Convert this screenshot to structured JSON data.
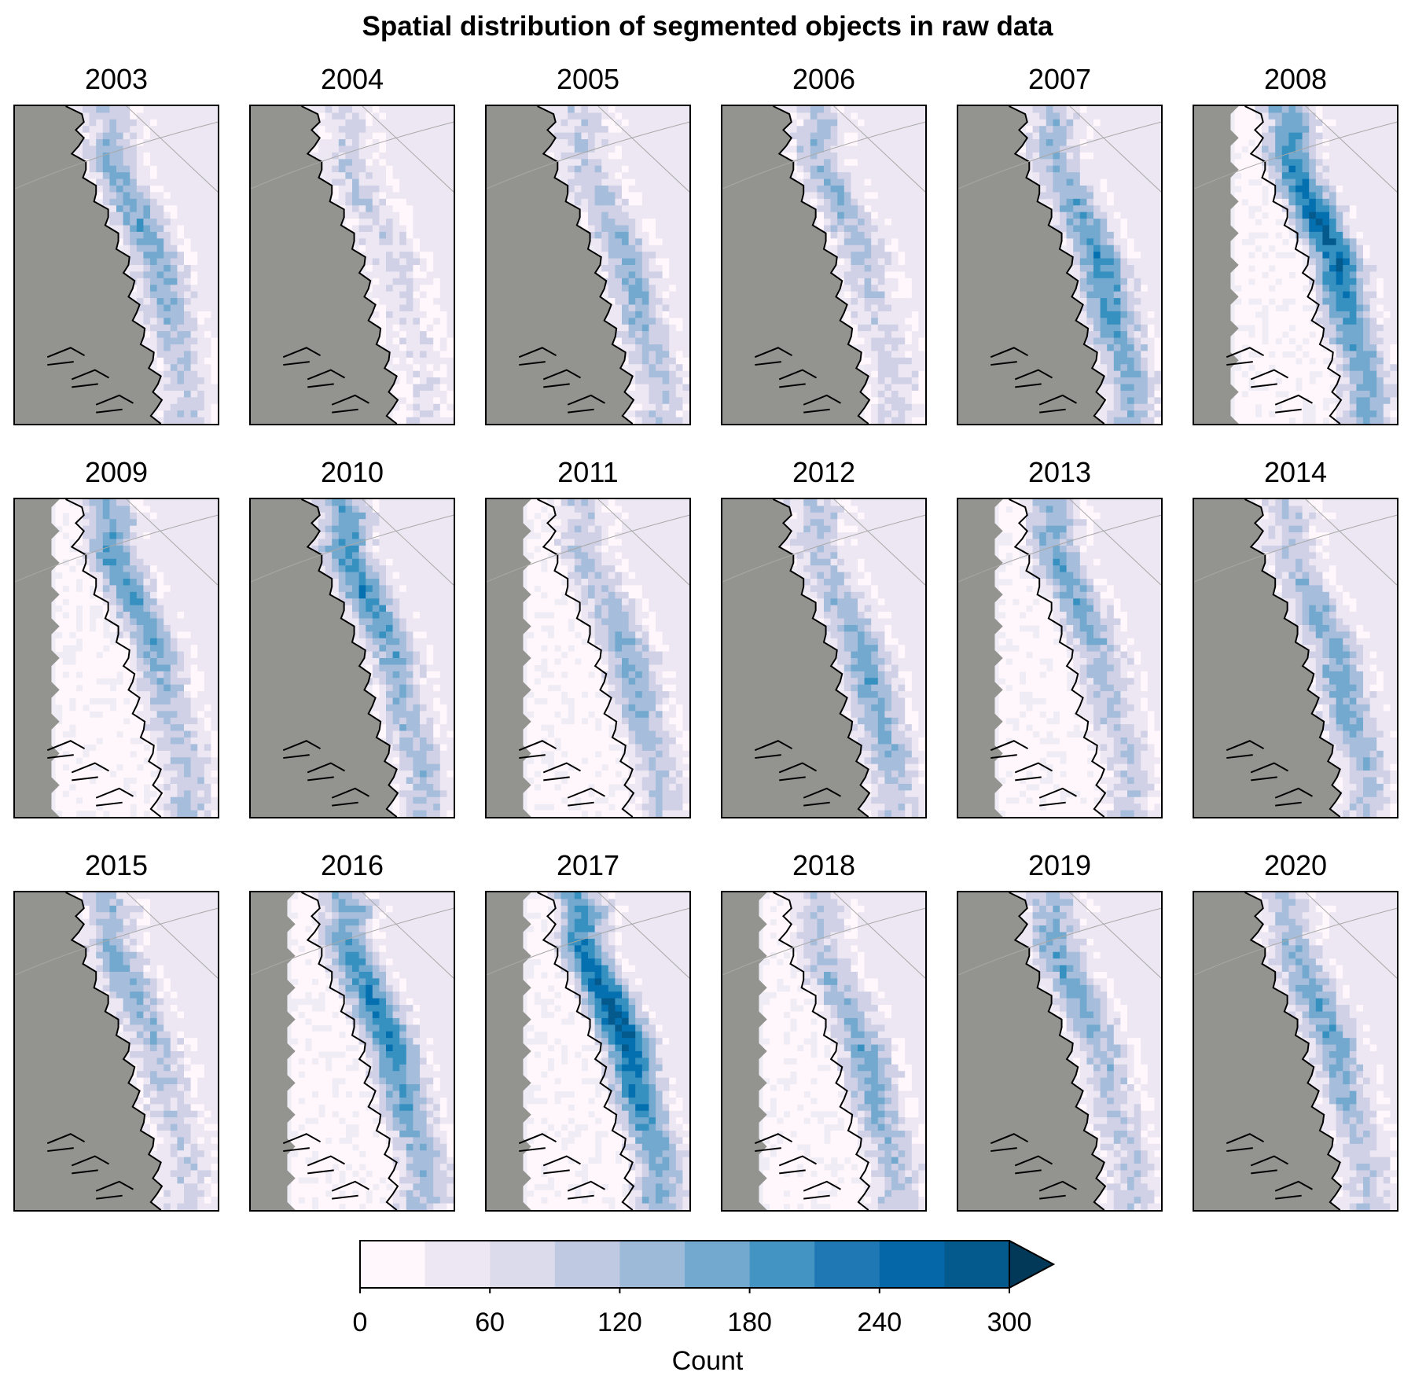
{
  "title": "Spatial distribution of segmented objects in raw data",
  "colors": {
    "land": "#939490",
    "coastline": "#000000",
    "gridline": "#a8a8a8",
    "scale": [
      "#fff7fb",
      "#ece7f2",
      "#d0d1e6",
      "#a6bddb",
      "#74a9cf",
      "#3690c0",
      "#0570b0",
      "#045a8d",
      "#023858"
    ]
  },
  "chart_data": {
    "type": "heatmap",
    "title": "Spatial distribution of segmented objects in raw data",
    "panels": [
      {
        "year": "2003",
        "intensity": 0.45,
        "peak_area": "north-central",
        "masked_ocean": false
      },
      {
        "year": "2004",
        "intensity": 0.25,
        "peak_area": "north",
        "masked_ocean": false
      },
      {
        "year": "2005",
        "intensity": 0.4,
        "peak_area": "central",
        "masked_ocean": false
      },
      {
        "year": "2006",
        "intensity": 0.35,
        "peak_area": "north",
        "masked_ocean": false
      },
      {
        "year": "2007",
        "intensity": 0.55,
        "peak_area": "central",
        "masked_ocean": false
      },
      {
        "year": "2008",
        "intensity": 0.7,
        "peak_area": "north-central",
        "masked_ocean": true
      },
      {
        "year": "2009",
        "intensity": 0.5,
        "peak_area": "north",
        "masked_ocean": true
      },
      {
        "year": "2010",
        "intensity": 0.55,
        "peak_area": "north",
        "masked_ocean": false
      },
      {
        "year": "2011",
        "intensity": 0.4,
        "peak_area": "central",
        "masked_ocean": true
      },
      {
        "year": "2012",
        "intensity": 0.45,
        "peak_area": "central",
        "masked_ocean": false
      },
      {
        "year": "2013",
        "intensity": 0.45,
        "peak_area": "north",
        "masked_ocean": true
      },
      {
        "year": "2014",
        "intensity": 0.45,
        "peak_area": "central",
        "masked_ocean": false
      },
      {
        "year": "2015",
        "intensity": 0.4,
        "peak_area": "north",
        "masked_ocean": false
      },
      {
        "year": "2016",
        "intensity": 0.6,
        "peak_area": "north-central",
        "masked_ocean": true
      },
      {
        "year": "2017",
        "intensity": 0.75,
        "peak_area": "north-central",
        "masked_ocean": true
      },
      {
        "year": "2018",
        "intensity": 0.45,
        "peak_area": "central",
        "masked_ocean": true
      },
      {
        "year": "2019",
        "intensity": 0.45,
        "peak_area": "north",
        "masked_ocean": false
      },
      {
        "year": "2020",
        "intensity": 0.45,
        "peak_area": "north-central",
        "masked_ocean": false
      }
    ],
    "colorbar": {
      "label": "Count",
      "range": [
        0,
        300
      ],
      "step": 30,
      "ticks": [
        "0",
        "60",
        "120",
        "180",
        "240",
        "300"
      ],
      "extend": "max"
    }
  }
}
